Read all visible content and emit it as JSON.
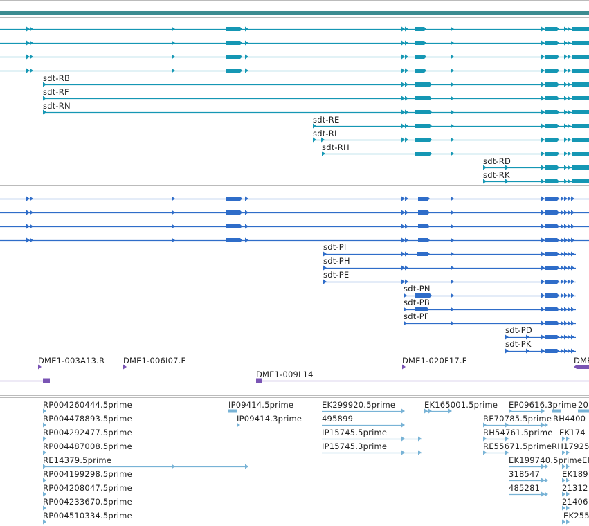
{
  "colors": {
    "header_bar": "#3c8c91",
    "transcript": "#1597b4",
    "protein": "#2f6dc9",
    "clone": "#7a54b4",
    "est": "#78b3d6",
    "divider": "#bbbbbb",
    "label": "#222222"
  },
  "transcripts": {
    "unlabeled_rows": 4,
    "labels": [
      "sdt-RB",
      "sdt-RF",
      "sdt-RN",
      "sdt-RE",
      "sdt-RI",
      "sdt-RH",
      "sdt-RD",
      "sdt-RK"
    ]
  },
  "proteins": {
    "unlabeled_rows": 4,
    "labels": [
      "sdt-PI",
      "sdt-PH",
      "sdt-PE",
      "sdt-PN",
      "sdt-PB",
      "sdt-PF",
      "sdt-PD",
      "sdt-PK"
    ]
  },
  "clones": {
    "labels": [
      "DME1-003A13.R",
      "DME1-006I07.F",
      "DME1-020F17.F",
      "DME1-009L14",
      "DME"
    ]
  },
  "ests": {
    "column1": [
      "RP004260444.5prime",
      "RP004478893.5prime",
      "RP004292477.5prime",
      "RP004487008.5prime",
      "RE14379.5prime",
      "RP004199298.5prime",
      "RP004208047.5prime",
      "RP004233670.5prime",
      "RP004510334.5prime"
    ],
    "column2": [
      "IP09414.5prime",
      "IP09414.3prime"
    ],
    "column3": [
      "EK299920.5prime",
      "495899",
      "IP15745.5prime",
      "IP15745.3prime"
    ],
    "column4": [
      "EK165001.5prime"
    ],
    "column5": [
      "RE70785.5prime",
      "RH54761.5prime",
      "RE55671.5prime"
    ],
    "column6": [
      "EP09616.3prime",
      "EK199740.5prime",
      "318547",
      "485281"
    ],
    "column7": [
      "20",
      "RH4400",
      "EK174",
      "RH17925",
      "EK",
      "EK189",
      "21312",
      "21406",
      "EK255"
    ]
  }
}
